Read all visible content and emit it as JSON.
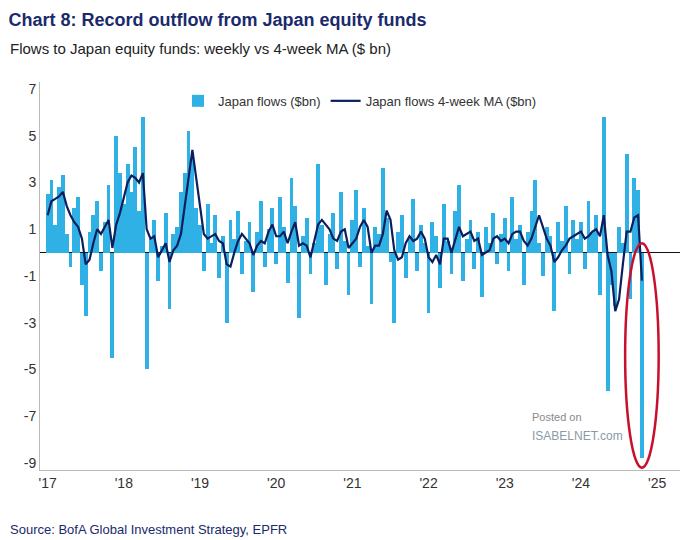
{
  "chart_data": {
    "type": "bar",
    "title": "Chart 8: Record outflow from Japan equity funds",
    "subtitle": "Flows to Japan equity funds: weekly vs 4-week MA ($ bn)",
    "source": "Source: BofA Global Investment Strategy, EPFR",
    "annotations": [
      "Posted on",
      "ISABELNET.com"
    ],
    "x": [
      2017.0,
      2017.05,
      2017.1,
      2017.15,
      2017.2,
      2017.25,
      2017.3,
      2017.35,
      2017.4,
      2017.45,
      2017.5,
      2017.55,
      2017.6,
      2017.65,
      2017.7,
      2017.75,
      2017.8,
      2017.85,
      2017.9,
      2017.95,
      2018.0,
      2018.05,
      2018.1,
      2018.15,
      2018.2,
      2018.25,
      2018.3,
      2018.35,
      2018.4,
      2018.45,
      2018.5,
      2018.55,
      2018.6,
      2018.65,
      2018.7,
      2018.75,
      2018.8,
      2018.85,
      2018.9,
      2018.95,
      2019.0,
      2019.05,
      2019.1,
      2019.15,
      2019.2,
      2019.25,
      2019.3,
      2019.35,
      2019.4,
      2019.45,
      2019.5,
      2019.55,
      2019.6,
      2019.65,
      2019.7,
      2019.75,
      2019.8,
      2019.85,
      2019.9,
      2019.95,
      2020.0,
      2020.05,
      2020.1,
      2020.15,
      2020.2,
      2020.25,
      2020.3,
      2020.35,
      2020.4,
      2020.45,
      2020.5,
      2020.55,
      2020.6,
      2020.65,
      2020.7,
      2020.75,
      2020.8,
      2020.85,
      2020.9,
      2020.95,
      2021.0,
      2021.05,
      2021.1,
      2021.15,
      2021.2,
      2021.25,
      2021.3,
      2021.35,
      2021.4,
      2021.45,
      2021.5,
      2021.55,
      2021.6,
      2021.65,
      2021.7,
      2021.75,
      2021.8,
      2021.85,
      2021.9,
      2021.95,
      2022.0,
      2022.05,
      2022.1,
      2022.15,
      2022.2,
      2022.25,
      2022.3,
      2022.35,
      2022.4,
      2022.45,
      2022.5,
      2022.55,
      2022.6,
      2022.65,
      2022.7,
      2022.75,
      2022.8,
      2022.85,
      2022.9,
      2022.95,
      2023.0,
      2023.05,
      2023.1,
      2023.15,
      2023.2,
      2023.25,
      2023.3,
      2023.35,
      2023.4,
      2023.45,
      2023.5,
      2023.55,
      2023.6,
      2023.65,
      2023.7,
      2023.75,
      2023.8,
      2023.85,
      2023.9,
      2023.95,
      2024.0,
      2024.05,
      2024.1,
      2024.15,
      2024.2,
      2024.25,
      2024.3,
      2024.35,
      2024.4,
      2024.45,
      2024.5,
      2024.55,
      2024.6,
      2024.65,
      2024.7,
      2024.75,
      2024.8
    ],
    "series": [
      {
        "name": "Japan flows ($bn)",
        "type": "bar",
        "color": "#2fb1e6",
        "values": [
          2.5,
          3.1,
          1.2,
          2.8,
          3.3,
          0.8,
          -0.6,
          1.9,
          2.4,
          -1.4,
          -2.7,
          0.9,
          1.6,
          2.2,
          -0.8,
          1.3,
          2.9,
          -4.5,
          5.0,
          3.4,
          2.1,
          3.8,
          2.6,
          4.5,
          1.8,
          5.8,
          -5.0,
          0.6,
          1.4,
          -1.2,
          0.3,
          1.7,
          -2.4,
          0.8,
          1.1,
          2.6,
          3.4,
          5.2,
          4.0,
          1.9,
          1.2,
          -0.8,
          2.1,
          0.4,
          1.6,
          -1.1,
          0.7,
          -3.0,
          1.4,
          0.6,
          1.8,
          -0.9,
          0.5,
          1.3,
          -1.7,
          0.9,
          2.2,
          -0.6,
          1.0,
          1.9,
          -0.5,
          2.4,
          1.1,
          -1.3,
          3.2,
          2.0,
          -2.8,
          0.7,
          1.5,
          -0.9,
          0.4,
          3.8,
          1.2,
          -1.4,
          0.8,
          1.7,
          -0.7,
          2.6,
          0.5,
          -1.8,
          1.4,
          2.7,
          -0.6,
          1.9,
          0.3,
          -2.2,
          1.1,
          0.8,
          3.6,
          1.5,
          -0.4,
          -3.0,
          0.9,
          1.6,
          -1.1,
          0.6,
          2.3,
          -0.8,
          1.2,
          0.4,
          -2.6,
          1.3,
          0.7,
          -1.5,
          2.1,
          0.5,
          -0.9,
          1.8,
          2.9,
          -1.2,
          0.6,
          1.4,
          -0.7,
          0.9,
          -1.9,
          1.1,
          0.4,
          1.7,
          -0.5,
          0.8,
          1.5,
          -0.8,
          2.4,
          0.6,
          1.2,
          -1.4,
          0.9,
          1.8,
          3.1,
          0.4,
          -1.0,
          1.1,
          0.7,
          -2.5,
          1.3,
          0.5,
          2.0,
          -0.9,
          1.4,
          0.6,
          1.3,
          -0.7,
          2.2,
          0.9,
          1.6,
          -1.8,
          5.8,
          -5.9,
          -1.4,
          -2.3,
          1.1,
          0.4,
          4.2,
          -2.0,
          3.2,
          2.7,
          -8.8
        ]
      },
      {
        "name": "Japan flows 4-week MA ($bn)",
        "type": "line",
        "color": "#0b1f5e",
        "values": [
          1.6,
          2.2,
          2.3,
          2.4,
          2.6,
          2.0,
          1.6,
          1.3,
          1.1,
          0.6,
          -0.5,
          -0.3,
          0.4,
          1.0,
          0.8,
          1.1,
          1.4,
          0.2,
          1.2,
          1.7,
          2.4,
          3.0,
          3.3,
          3.2,
          3.0,
          3.4,
          1.0,
          0.6,
          0.7,
          -0.2,
          0.1,
          0.4,
          -0.4,
          0.1,
          0.3,
          0.8,
          2.0,
          3.1,
          4.4,
          3.2,
          2.0,
          0.8,
          0.6,
          0.7,
          0.8,
          0.5,
          0.4,
          -0.5,
          -0.6,
          0.0,
          0.5,
          0.8,
          0.6,
          0.4,
          -0.1,
          0.3,
          0.5,
          0.4,
          0.9,
          1.2,
          0.7,
          0.7,
          0.9,
          0.4,
          0.9,
          1.3,
          0.3,
          0.4,
          0.3,
          -0.2,
          0.5,
          1.2,
          1.4,
          1.2,
          1.0,
          0.6,
          0.5,
          0.9,
          1.0,
          0.2,
          0.4,
          0.6,
          1.1,
          1.4,
          1.1,
          0.0,
          0.3,
          0.3,
          0.8,
          1.8,
          1.4,
          0.1,
          -0.3,
          -0.2,
          0.4,
          0.7,
          0.5,
          0.6,
          0.9,
          0.6,
          -0.2,
          -0.4,
          -0.1,
          -0.5,
          0.6,
          0.6,
          0.0,
          0.6,
          1.1,
          0.7,
          0.8,
          0.9,
          0.5,
          0.6,
          -0.1,
          0.0,
          0.1,
          0.6,
          0.7,
          0.5,
          0.6,
          0.4,
          0.8,
          0.9,
          0.9,
          0.5,
          0.3,
          0.6,
          1.1,
          1.6,
          1.1,
          0.6,
          0.3,
          -0.4,
          -0.2,
          0.1,
          0.3,
          0.6,
          0.7,
          0.8,
          0.9,
          0.6,
          0.7,
          0.9,
          1.0,
          0.7,
          1.6,
          -0.1,
          -0.8,
          -2.5,
          -2.0,
          -0.5,
          0.9,
          0.9,
          1.5,
          1.6,
          -1.2
        ]
      }
    ],
    "xlim": [
      2016.9,
      2025.3
    ],
    "xticks": [
      {
        "value": 2017,
        "label": "'17"
      },
      {
        "value": 2018,
        "label": "'18"
      },
      {
        "value": 2019,
        "label": "'19"
      },
      {
        "value": 2020,
        "label": "'20"
      },
      {
        "value": 2021,
        "label": "'21"
      },
      {
        "value": 2022,
        "label": "'22"
      },
      {
        "value": 2023,
        "label": "'23"
      },
      {
        "value": 2024,
        "label": "'24"
      },
      {
        "value": 2025,
        "label": "'25"
      }
    ],
    "ylim": [
      -9.3,
      7.3
    ],
    "yticks": [
      -9,
      -7,
      -5,
      -3,
      -1,
      1,
      3,
      5,
      7
    ],
    "grid": false,
    "legend": "top"
  }
}
